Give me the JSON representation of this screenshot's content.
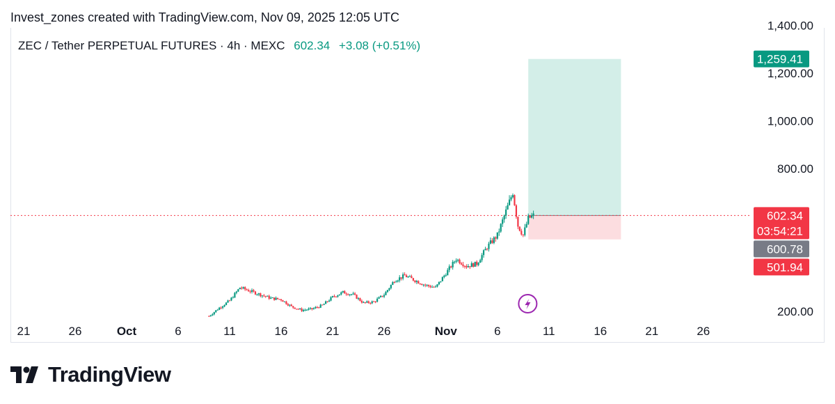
{
  "header": {
    "caption": "Invest_zones created with TradingView.com, Nov 09, 2025 12:05 UTC"
  },
  "legend": {
    "symbol": "ZEC / Tether PERPETUAL FUTURES · 4h · MEXC",
    "last": "602.34",
    "change": "+3.08 (+0.51%)"
  },
  "brand": {
    "name": "TradingView"
  },
  "colors": {
    "up": "#089981",
    "down": "#f23645",
    "target_fill": "#d3eee8",
    "stop_fill": "#fcdde0",
    "last_line": "#f23645",
    "event": "#9c27b0"
  },
  "chart_data": {
    "type": "candlestick",
    "x_labels": [
      {
        "label": "21",
        "date": "2025-09-21"
      },
      {
        "label": "26",
        "date": "2025-09-26"
      },
      {
        "label": "Oct",
        "date": "2025-10-01",
        "bold": true
      },
      {
        "label": "6",
        "date": "2025-10-06"
      },
      {
        "label": "11",
        "date": "2025-10-11"
      },
      {
        "label": "16",
        "date": "2025-10-16"
      },
      {
        "label": "21",
        "date": "2025-10-21"
      },
      {
        "label": "26",
        "date": "2025-10-26"
      },
      {
        "label": "Nov",
        "date": "2025-11-01",
        "bold": true
      },
      {
        "label": "6",
        "date": "2025-11-06"
      },
      {
        "label": "11",
        "date": "2025-11-11"
      },
      {
        "label": "16",
        "date": "2025-11-16"
      },
      {
        "label": "21",
        "date": "2025-11-21"
      },
      {
        "label": "26",
        "date": "2025-11-26"
      }
    ],
    "y_ticks": [
      {
        "label": "1,400.00",
        "value": 1400
      },
      {
        "label": "1,200.00",
        "value": 1200
      },
      {
        "label": "1,000.00",
        "value": 1000
      },
      {
        "label": "800.00",
        "value": 800
      },
      {
        "label": "200.00",
        "value": 200
      }
    ],
    "price_tags": [
      {
        "label": "1,259.41",
        "value": 1259.41,
        "color": "#089981"
      },
      {
        "label": "602.34",
        "value": 602.34,
        "color": "#f23645",
        "sub": "03:54:21"
      },
      {
        "label": "600.78",
        "value": 600.78,
        "color": "#787b86"
      },
      {
        "label": "501.94",
        "value": 501.94,
        "color": "#f23645"
      }
    ],
    "last_price": 602.34,
    "position": {
      "entry": 602.34,
      "target": 1259.41,
      "stop": 501.94,
      "start": "2025-11-09",
      "end": "2025-11-18"
    },
    "event": {
      "date": "2025-11-08",
      "icon": "lightning-bolt-icon"
    },
    "close_path": [
      [
        "2025-10-09",
        180
      ],
      [
        "2025-10-10",
        215
      ],
      [
        "2025-10-11",
        245
      ],
      [
        "2025-10-12",
        300
      ],
      [
        "2025-10-13",
        285
      ],
      [
        "2025-10-14",
        270
      ],
      [
        "2025-10-15",
        255
      ],
      [
        "2025-10-16",
        250
      ],
      [
        "2025-10-17",
        220
      ],
      [
        "2025-10-18",
        205
      ],
      [
        "2025-10-19",
        210
      ],
      [
        "2025-10-20",
        225
      ],
      [
        "2025-10-21",
        260
      ],
      [
        "2025-10-22",
        280
      ],
      [
        "2025-10-23",
        270
      ],
      [
        "2025-10-24",
        235
      ],
      [
        "2025-10-25",
        240
      ],
      [
        "2025-10-26",
        270
      ],
      [
        "2025-10-27",
        330
      ],
      [
        "2025-10-28",
        350
      ],
      [
        "2025-10-29",
        330
      ],
      [
        "2025-10-30",
        310
      ],
      [
        "2025-10-31",
        300
      ],
      [
        "2025-11-01",
        360
      ],
      [
        "2025-11-02",
        420
      ],
      [
        "2025-11-03",
        390
      ],
      [
        "2025-11-04",
        400
      ],
      [
        "2025-11-05",
        470
      ],
      [
        "2025-11-06",
        520
      ],
      [
        "2025-11-07",
        640
      ],
      [
        "2025-11-07T12:00",
        700
      ],
      [
        "2025-11-08",
        560
      ],
      [
        "2025-11-08T12:00",
        520
      ],
      [
        "2025-11-09",
        590
      ],
      [
        "2025-11-09T12:00",
        602.34
      ]
    ]
  }
}
